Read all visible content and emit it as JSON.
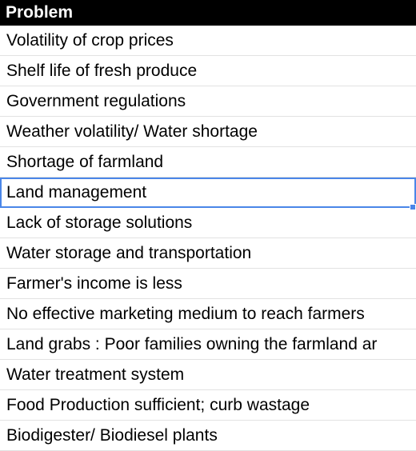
{
  "sheet": {
    "header": "Problem",
    "rows": [
      "Volatility of crop prices",
      "Shelf life of fresh produce",
      "Government regulations",
      "Weather volatility/ Water shortage",
      "Shortage of farmland",
      "Land management",
      "Lack of storage solutions",
      "Water storage and transportation",
      "Farmer's income is less",
      "No effective marketing medium to reach farmers",
      "Land grabs : Poor families owning the farmland ar",
      "Water treatment system",
      "Food Production sufficient; curb wastage",
      "Biodigester/ Biodiesel plants"
    ]
  },
  "colors": {
    "header_bg": "#000000",
    "selection": "#4a86e8"
  }
}
